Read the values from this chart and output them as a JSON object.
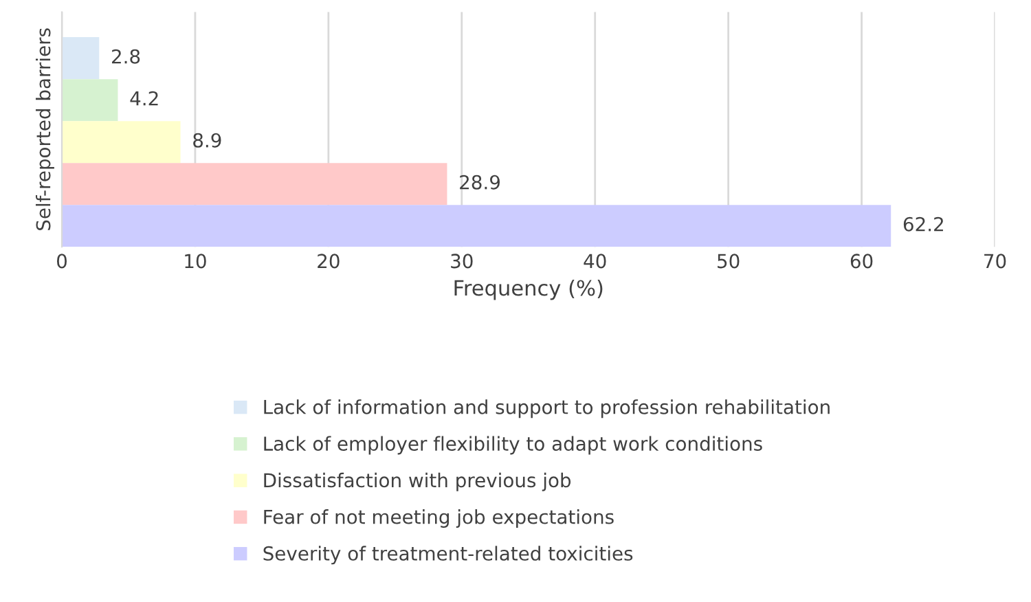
{
  "chart_data": {
    "type": "bar",
    "orientation": "horizontal",
    "categories": [
      null,
      null,
      null,
      null,
      null
    ],
    "series": [
      {
        "name": "Lack of information and support to profession rehabilitation",
        "color": "#dae8f6",
        "values": [
          2.8,
          null,
          null,
          null,
          null
        ]
      },
      {
        "name": "Lack of employer flexibility to adapt work conditions",
        "color": "#d6f2d0",
        "values": [
          null,
          4.2,
          null,
          null,
          null
        ]
      },
      {
        "name": "Dissatisfaction with previous job",
        "color": "#ffffcc",
        "values": [
          null,
          null,
          8.9,
          null,
          null
        ]
      },
      {
        "name": "Fear of not meeting job expectations",
        "color": "#ffc9c9",
        "values": [
          null,
          null,
          null,
          28.9,
          null
        ]
      },
      {
        "name": "Severity of treatment-related toxicities",
        "color": "#ccccff",
        "values": [
          null,
          null,
          null,
          null,
          62.2
        ]
      }
    ],
    "xlabel": "Frequency (%)",
    "ylabel": "Self-reported barriers",
    "xlim": [
      0,
      70
    ],
    "xticks": [
      0,
      10,
      20,
      30,
      40,
      50,
      60,
      70
    ],
    "grid": "x",
    "legend": "bottom",
    "tick_labels": "x",
    "data_labels": true
  }
}
